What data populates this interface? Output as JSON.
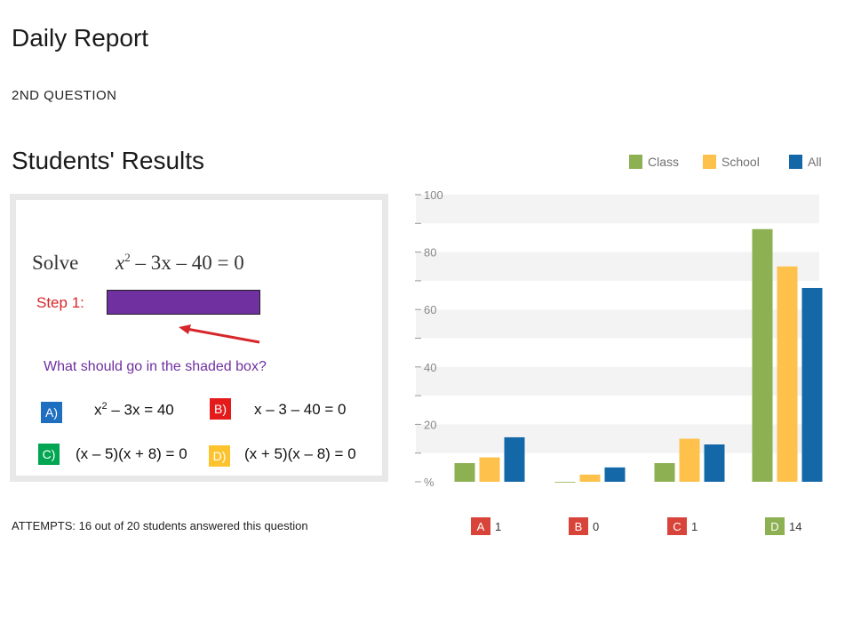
{
  "header": {
    "title": "Daily Report",
    "subtitle": "2ND QUESTION"
  },
  "section_title": "Students' Results",
  "question": {
    "solve_label": "Solve",
    "equation_var": "x",
    "equation_exp": "2",
    "equation_rest": " – 3x – 40 = 0",
    "step_label": "Step 1:",
    "prompt": "What should go in the shaded box?",
    "options": [
      {
        "letter": "A)",
        "text_a": "x",
        "exp": "2",
        "text_b": " – 3x = 40",
        "color": "#1f6fc0"
      },
      {
        "letter": "B)",
        "text_a": "x – 3 – 40 = 0",
        "exp": "",
        "text_b": "",
        "color": "#e31b1b"
      },
      {
        "letter": "C)",
        "text_a": "(x – 5)(x + 8) = 0",
        "exp": "",
        "text_b": "",
        "color": "#00a651"
      },
      {
        "letter": "D)",
        "text_a": "(x + 5)(x – 8) = 0",
        "exp": "",
        "text_b": "",
        "color": "#fdc32e"
      }
    ],
    "shaded_color": "#7030a0"
  },
  "attempts_text": "ATTEMPTS: 16 out of 20 students answered this question",
  "answer_tags": [
    {
      "letter": "A",
      "count": "1",
      "color": "#d9443a"
    },
    {
      "letter": "B",
      "count": "0",
      "color": "#d9443a"
    },
    {
      "letter": "C",
      "count": "1",
      "color": "#d9443a"
    },
    {
      "letter": "D",
      "count": "14",
      "color": "#8db052"
    }
  ],
  "chart_data": {
    "type": "bar",
    "categories": [
      "A",
      "B",
      "C",
      "D"
    ],
    "series": [
      {
        "name": "Class",
        "color": "#8db052",
        "values": [
          6.5,
          0,
          6.5,
          88
        ]
      },
      {
        "name": "School",
        "color": "#fdc14c",
        "values": [
          8.5,
          2.5,
          15,
          75
        ]
      },
      {
        "name": "All",
        "color": "#1468a7",
        "values": [
          15.5,
          5,
          13,
          67.5
        ]
      }
    ],
    "ylim": [
      0,
      100
    ],
    "y_ticks": [
      {
        "value": 100,
        "label": "100"
      },
      {
        "value": 90,
        "label": ""
      },
      {
        "value": 80,
        "label": "80"
      },
      {
        "value": 70,
        "label": ""
      },
      {
        "value": 60,
        "label": "60"
      },
      {
        "value": 50,
        "label": ""
      },
      {
        "value": 40,
        "label": "40"
      },
      {
        "value": 30,
        "label": ""
      },
      {
        "value": 20,
        "label": "20"
      },
      {
        "value": 10,
        "label": ""
      },
      {
        "value": 0,
        "label": "%"
      }
    ],
    "legend_position": "top-right",
    "grid": true
  }
}
